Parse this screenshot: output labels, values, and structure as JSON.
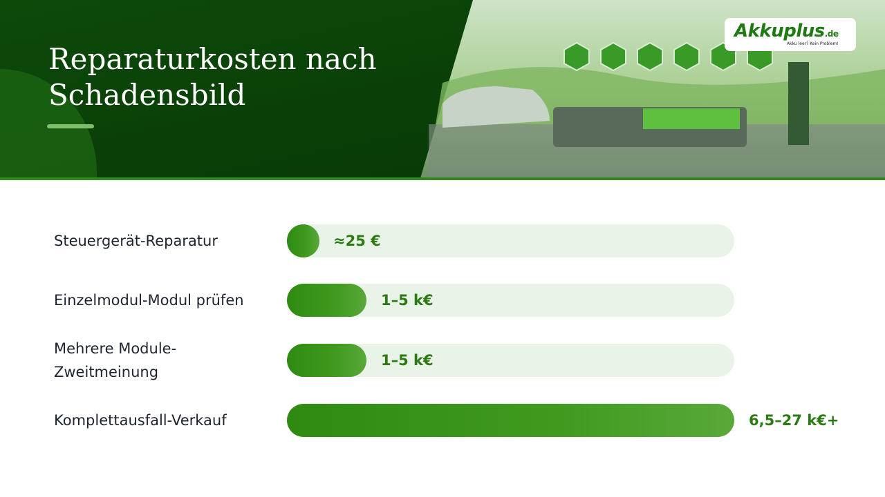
{
  "header": {
    "title": "Reparaturkosten nach Schadensbild",
    "logo": {
      "brand": "Akkuplus",
      "tld": ".de",
      "tagline": "Akku leer? Kein Problem!"
    }
  },
  "rows": [
    {
      "label": "Steuergerät-Reparatur",
      "amount": "≈25 €"
    },
    {
      "label": "Einzelmodul-Modul prüfen",
      "amount": "1–5 k€"
    },
    {
      "label": "Mehrere Module-Zweitmeinung",
      "amount": "1–5 k€"
    },
    {
      "label": "Komplettausfall-Verkauf",
      "amount": "6,5–27 k€+"
    }
  ]
}
